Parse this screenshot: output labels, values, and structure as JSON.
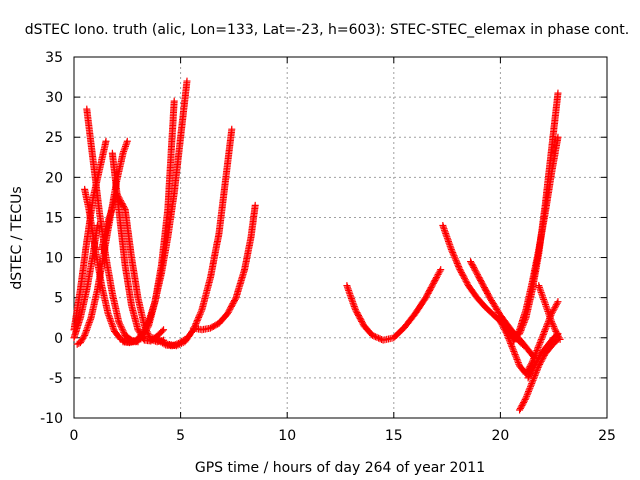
{
  "chart_data": {
    "type": "scatter",
    "title": "dSTEC Iono. truth (alic, Lon=133, Lat=-23, h=603): STEC-STEC_elemax in phase cont.",
    "xlabel": "GPS time / hours of day 264 of year 2011",
    "ylabel": "dSTEC  / TECUs",
    "xlim": [
      0,
      25
    ],
    "ylim": [
      -10,
      35
    ],
    "xticks": [
      0,
      5,
      10,
      15,
      20,
      25
    ],
    "yticks": [
      -10,
      -5,
      0,
      5,
      10,
      15,
      20,
      25,
      30,
      35
    ],
    "grid": true,
    "marker": "+",
    "color": "#ff0000",
    "series": [
      {
        "x": [
          0.0,
          0.3,
          0.6,
          0.9,
          1.2,
          1.5
        ],
        "y": [
          1.0,
          6.0,
          12.0,
          17.5,
          21.0,
          24.5
        ]
      },
      {
        "x": [
          0.15,
          0.3,
          0.5,
          0.8,
          1.1,
          1.4,
          1.7,
          2.0,
          2.3,
          2.5
        ],
        "y": [
          -0.8,
          -0.6,
          0.3,
          2.5,
          6.0,
          10.5,
          15.0,
          19.5,
          23.0,
          24.5
        ]
      },
      {
        "x": [
          0.5,
          0.7,
          1.0,
          1.3,
          1.6,
          1.9,
          2.2,
          2.5,
          2.8
        ],
        "y": [
          18.5,
          16.0,
          11.0,
          6.5,
          3.0,
          0.8,
          -0.2,
          -0.5,
          -0.4
        ]
      },
      {
        "x": [
          0.6,
          0.9,
          1.2,
          1.5,
          1.8,
          2.1,
          2.4,
          2.7,
          3.0
        ],
        "y": [
          28.5,
          22.0,
          15.5,
          10.0,
          5.5,
          2.0,
          0.3,
          -0.3,
          -0.5
        ]
      },
      {
        "x": [
          0.0,
          0.3,
          0.6,
          0.9,
          1.1
        ],
        "y": [
          0.0,
          2.5,
          6.0,
          10.5,
          14.0
        ]
      },
      {
        "x": [
          1.3,
          1.6,
          2.0,
          2.4,
          2.7,
          3.0,
          3.3,
          3.6,
          3.9,
          4.2
        ],
        "y": [
          11.0,
          14.5,
          18.0,
          16.0,
          10.0,
          5.0,
          1.5,
          -0.2,
          -0.5,
          -0.3
        ]
      },
      {
        "x": [
          1.8,
          2.1,
          2.4,
          2.7,
          3.0,
          3.3,
          3.6,
          3.9,
          4.2
        ],
        "y": [
          23.0,
          16.0,
          9.0,
          4.0,
          1.0,
          -0.3,
          -0.4,
          0.2,
          1.0
        ]
      },
      {
        "x": [
          2.3,
          2.6,
          2.9,
          3.2,
          3.5,
          3.8,
          4.1,
          4.4,
          4.7,
          5.0,
          5.3
        ],
        "y": [
          -0.5,
          -0.6,
          -0.4,
          0.5,
          2.0,
          4.5,
          8.0,
          12.5,
          18.0,
          25.0,
          32.0
        ]
      },
      {
        "x": [
          2.6,
          2.9,
          3.2,
          3.5,
          3.8,
          4.1,
          4.4,
          4.7
        ],
        "y": [
          -0.5,
          -0.5,
          0.0,
          1.5,
          4.5,
          9.0,
          16.0,
          29.5
        ]
      },
      {
        "x": [
          3.7,
          4.0,
          4.3,
          4.6,
          4.9,
          5.2
        ],
        "y": [
          0.0,
          -0.4,
          -0.9,
          -1.0,
          -0.7,
          -0.2
        ]
      },
      {
        "x": [
          4.0,
          4.4,
          4.8,
          5.2,
          5.6,
          6.0,
          6.4,
          6.8,
          7.1,
          7.4
        ],
        "y": [
          -0.3,
          -0.8,
          -1.0,
          -0.5,
          1.0,
          3.5,
          7.5,
          13.0,
          19.5,
          26.0
        ]
      },
      {
        "x": [
          5.6,
          6.0,
          6.4,
          6.8,
          7.2,
          7.6,
          8.0,
          8.3,
          8.5
        ],
        "y": [
          1.2,
          1.0,
          1.2,
          1.8,
          3.0,
          5.0,
          8.5,
          12.5,
          16.5
        ]
      },
      {
        "x": [
          12.8,
          13.2,
          13.6,
          14.0,
          14.5,
          15.0,
          15.5,
          16.0,
          16.5,
          17.0,
          17.2
        ],
        "y": [
          6.5,
          3.5,
          1.5,
          0.3,
          -0.3,
          0.0,
          1.3,
          3.0,
          5.0,
          7.5,
          8.5
        ]
      },
      {
        "x": [
          17.3,
          17.7,
          18.1,
          18.5,
          18.9,
          19.3,
          19.7,
          20.1,
          20.5,
          20.8,
          21.1
        ],
        "y": [
          14.0,
          11.0,
          8.5,
          6.5,
          5.0,
          3.8,
          2.8,
          1.8,
          0.8,
          -0.2,
          -1.0
        ]
      },
      {
        "x": [
          18.6,
          19.0,
          19.5,
          20.0,
          20.5,
          21.0,
          21.3,
          21.6
        ],
        "y": [
          9.5,
          7.5,
          5.0,
          2.8,
          1.0,
          -0.5,
          -1.5,
          -2.5
        ]
      },
      {
        "x": [
          20.0,
          20.3,
          20.6,
          20.9,
          21.2,
          21.5,
          21.8,
          22.1,
          22.4,
          22.7
        ],
        "y": [
          2.0,
          0.5,
          -1.5,
          -3.5,
          -4.5,
          -3.0,
          -1.0,
          1.0,
          3.0,
          4.5
        ]
      },
      {
        "x": [
          20.3,
          20.6,
          20.9,
          21.2,
          21.5,
          21.8,
          22.1,
          22.4,
          22.7
        ],
        "y": [
          0.8,
          0.0,
          0.5,
          2.5,
          6.0,
          10.5,
          16.5,
          23.5,
          30.5
        ]
      },
      {
        "x": [
          20.6,
          20.9,
          21.2,
          21.5,
          21.8,
          22.1,
          22.4,
          22.7
        ],
        "y": [
          -0.5,
          1.0,
          3.5,
          7.0,
          11.0,
          15.5,
          20.5,
          25.0
        ]
      },
      {
        "x": [
          20.9,
          21.2,
          21.5,
          21.8,
          22.1,
          22.4,
          22.7
        ],
        "y": [
          -9.0,
          -7.5,
          -5.5,
          -3.5,
          -2.0,
          -1.0,
          -0.2
        ]
      },
      {
        "x": [
          21.3,
          21.6,
          21.9,
          22.2,
          22.5,
          22.7
        ],
        "y": [
          -5.0,
          -3.5,
          -2.0,
          -1.0,
          0.0,
          0.5
        ]
      },
      {
        "x": [
          21.8,
          22.0,
          22.2,
          22.4,
          22.6,
          22.8
        ],
        "y": [
          6.5,
          5.0,
          3.5,
          2.0,
          0.8,
          -0.2
        ]
      }
    ]
  }
}
